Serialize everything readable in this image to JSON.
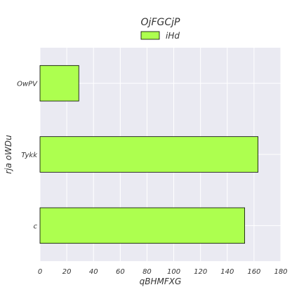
{
  "chart_data": {
    "type": "bar",
    "orientation": "horizontal",
    "title": "OjFGCjP",
    "xlabel": "qBHMFXG",
    "ylabel": "rja oWDu",
    "categories": [
      "OwPV",
      "Tykk",
      "c"
    ],
    "series": [
      {
        "name": "iHd",
        "values": [
          29,
          163,
          153
        ],
        "color": "#adff4f"
      }
    ],
    "xlim": [
      0,
      180
    ],
    "xticks": [
      "0",
      "20",
      "40",
      "60",
      "80",
      "100",
      "120",
      "140",
      "160",
      "180"
    ],
    "grid": true,
    "legend_position": "top-center"
  },
  "colors": {
    "background": "#eaeaf2",
    "grid": "#ffffff",
    "bar_edge": "#000000"
  }
}
